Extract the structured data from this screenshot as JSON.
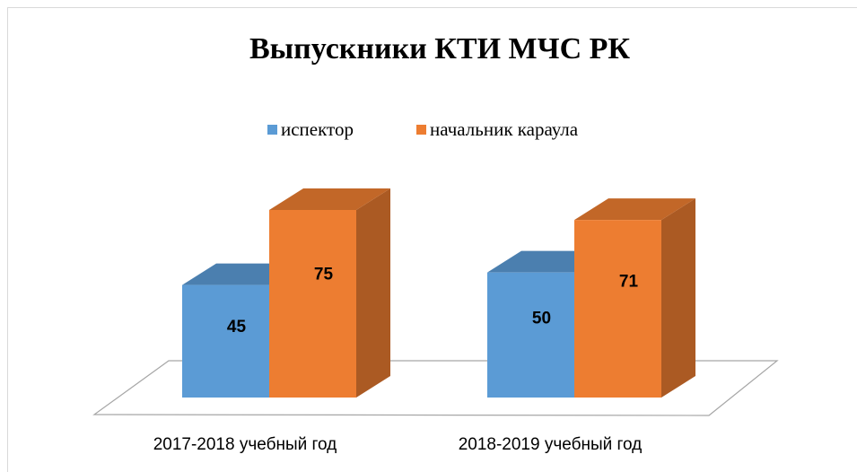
{
  "chart_data": {
    "type": "bar3d",
    "title": "Выпускники КТИ МЧС РК",
    "categories": [
      "2017-2018 учебный год",
      "2018-2019 учебный год"
    ],
    "series": [
      {
        "name": "испектор",
        "color": "#5b9bd5",
        "values": [
          45,
          50
        ]
      },
      {
        "name": "начальник караула",
        "color": "#ed7d31",
        "values": [
          75,
          71
        ]
      }
    ],
    "legend": "top"
  }
}
